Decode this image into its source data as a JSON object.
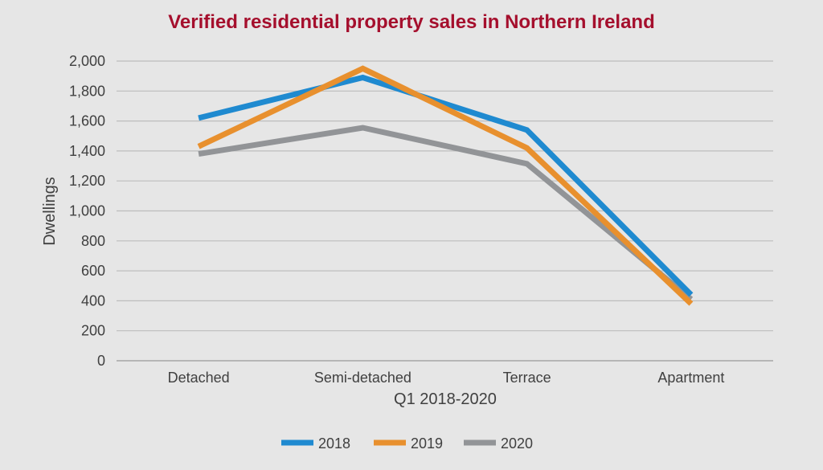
{
  "chart_data": {
    "type": "line",
    "title": "Verified residential property sales in Northern Ireland",
    "xlabel": "Q1 2018-2020",
    "ylabel": "Dwellings",
    "categories": [
      "Detached",
      "Semi-detached",
      "Terrace",
      "Apartment"
    ],
    "ylim": [
      0,
      2000
    ],
    "yticks": [
      0,
      200,
      400,
      600,
      800,
      1000,
      1200,
      1400,
      1600,
      1800,
      2000
    ],
    "ytick_labels": [
      "0",
      "200",
      "400",
      "600",
      "800",
      "1,000",
      "1,200",
      "1,400",
      "1,600",
      "1,800",
      "2,000"
    ],
    "grid": true,
    "legend": "bottom",
    "series": [
      {
        "name": "2018",
        "color": "#1f8ad0",
        "values": [
          1620,
          1890,
          1540,
          440
        ]
      },
      {
        "name": "2019",
        "color": "#e8902e",
        "values": [
          1430,
          1950,
          1420,
          380
        ]
      },
      {
        "name": "2020",
        "color": "#929497",
        "values": [
          1380,
          1555,
          1315,
          410
        ]
      }
    ],
    "title_color": "#a50f2d"
  }
}
